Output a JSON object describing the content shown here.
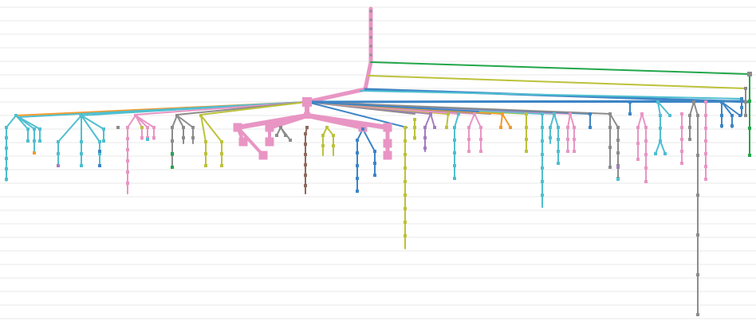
{
  "colors": {
    "background": "#ffffff",
    "gridline": "#e9e9e9",
    "pink": "#e895c4",
    "cyan": "#4fbfd0",
    "blue": "#3d85c6",
    "orange": "#f39a2e",
    "purple": "#a47cc0",
    "olive": "#bcc23a",
    "green": "#22a64a",
    "gray": "#8c8c8c",
    "brown": "#8e6a5d"
  },
  "diagram": {
    "type": "tree",
    "labels": []
  }
}
